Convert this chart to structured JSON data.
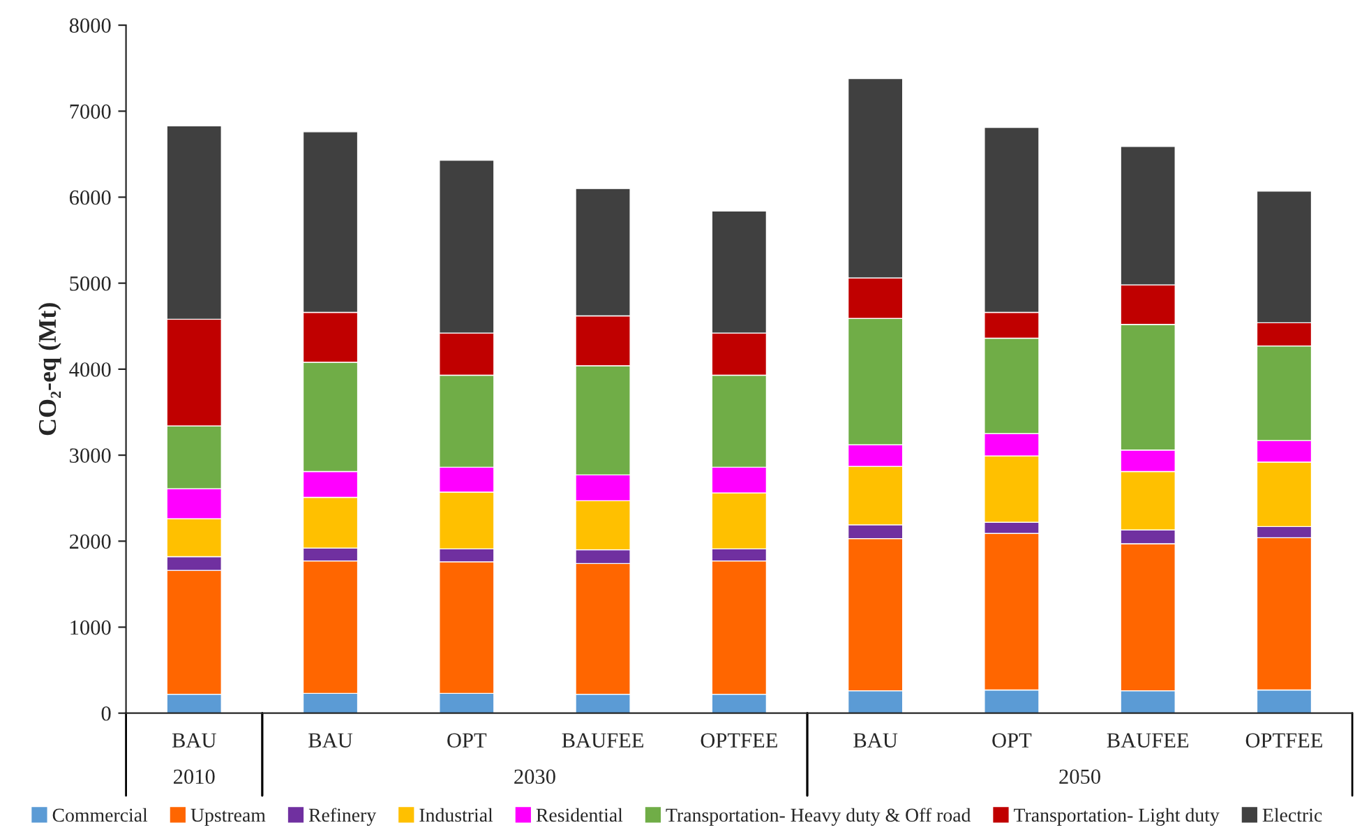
{
  "chart_data": {
    "type": "bar",
    "stacked": true,
    "ylabel": "CO₂-eq (Mt)",
    "categories": [
      "BAU",
      "BAU",
      "OPT",
      "BAUFEE",
      "OPTFEE",
      "BAU",
      "OPT",
      "BAUFEE",
      "OPTFEE"
    ],
    "annotations": [
      "2010",
      "2030",
      "2050"
    ],
    "series": [
      {
        "name": "Commercial",
        "color": "#5b9bd5",
        "values": [
          220,
          230,
          230,
          220,
          220,
          260,
          270,
          260,
          270
        ]
      },
      {
        "name": "Upstream",
        "color": "#ff6600",
        "values": [
          1440,
          1540,
          1530,
          1520,
          1550,
          1770,
          1820,
          1710,
          1770
        ]
      },
      {
        "name": "Refinery",
        "color": "#7030a0",
        "values": [
          160,
          150,
          150,
          160,
          140,
          160,
          130,
          160,
          130
        ]
      },
      {
        "name": "Industrial",
        "color": "#ffc000",
        "values": [
          440,
          590,
          660,
          570,
          650,
          680,
          770,
          680,
          750
        ]
      },
      {
        "name": "Residential",
        "color": "#ff00ff",
        "values": [
          350,
          300,
          290,
          300,
          300,
          250,
          260,
          250,
          250
        ]
      },
      {
        "name": "Transportation- Heavy duty & Off road",
        "color": "#70ad47",
        "values": [
          730,
          1270,
          1070,
          1270,
          1070,
          1470,
          1110,
          1460,
          1100
        ]
      },
      {
        "name": "Transportation- Light duty",
        "color": "#c00000",
        "values": [
          1240,
          580,
          490,
          580,
          490,
          470,
          300,
          460,
          270
        ]
      },
      {
        "name": "Electric",
        "color": "#404040",
        "values": [
          2250,
          2100,
          2010,
          1480,
          1420,
          2320,
          2150,
          1610,
          1530
        ]
      }
    ],
    "ylim": [
      0,
      8000
    ],
    "yticks": [
      0,
      1000,
      2000,
      3000,
      4000,
      5000,
      6000,
      7000,
      8000
    ],
    "grid": false,
    "legend": "bottom"
  }
}
